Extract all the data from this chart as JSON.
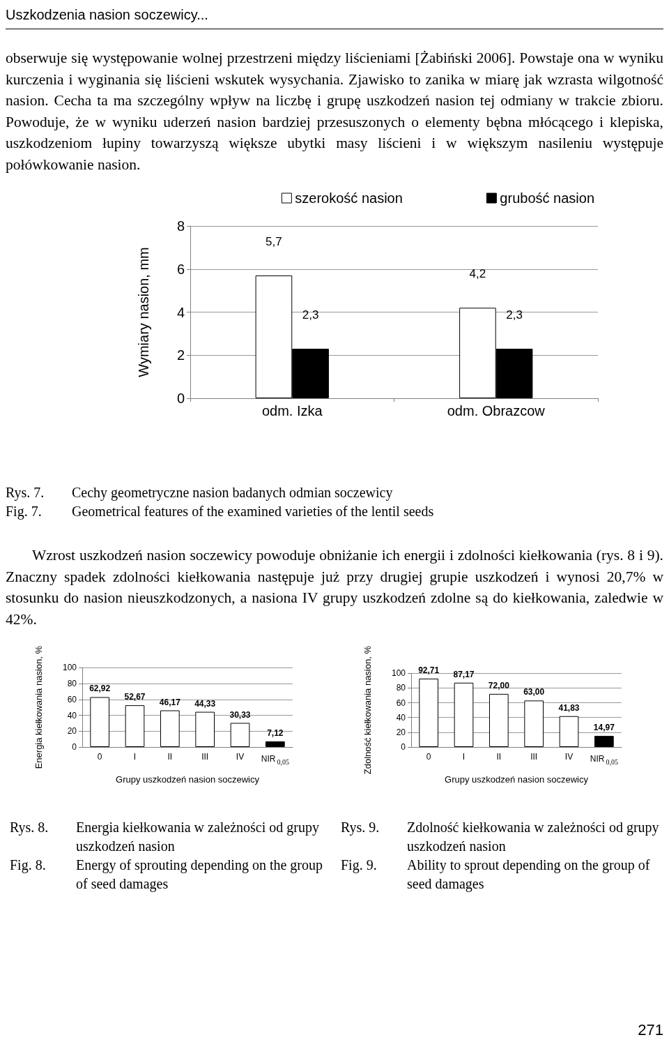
{
  "chart_data": [
    {
      "type": "bar",
      "ylabel": "Wymiary nasion, mm",
      "categories": [
        "odm. Izka",
        "odm. Obrazcow"
      ],
      "series": [
        {
          "name": "szerokość nasion",
          "color": "#ffffff",
          "values": [
            5.7,
            4.2
          ],
          "value_labels": [
            "5,7",
            "4,2"
          ]
        },
        {
          "name": "grubość nasion",
          "color": "#000000",
          "values": [
            2.3,
            2.3
          ],
          "value_labels": [
            "2,3",
            "2,3"
          ]
        }
      ],
      "ylim": [
        0,
        8
      ],
      "yticks": [
        0,
        2,
        4,
        6,
        8
      ],
      "grid": "y",
      "legend": "top right",
      "annotations": [
        "Uszkodzenia nasion soczewicy...",
        "obserwuje się występowanie wolnej przestrzeni między liścieniami [Żabiński 2006]. Powstaje ona w wyniku kurczenia i wyginania się liścieni wskutek wysychania. Zjawisko to zanika w miarę jak wzrasta wilgotność nasion. Cecha ta ma szczególny wpływ na liczbę i grupę uszkodzeń nasion tej odmiany w trakcie zbioru. Powoduje, że w wyniku uderzeń nasion bardziej przesuszonych o elementy bębna młócącego i klepiska, uszkodzeniom łupiny towarzyszą większe ubytki masy liścieni i w większym nasileniu występuje połówkowanie nasion.",
        "Rys. 7.",
        "Cechy geometryczne nasion badanych odmian soczewicy",
        "Fig. 7.",
        "Geometrical features of the examined varieties of the lentil seeds"
      ]
    },
    {
      "type": "bar",
      "ylabel": "Energia kiełkowania nasion, %",
      "xlabel": "Grupy uszkodzeń nasion soczewicy",
      "categories": [
        "0",
        "I",
        "II",
        "III",
        "IV",
        "NIR$_{0,05}$"
      ],
      "values": [
        62.92,
        52.67,
        46.17,
        44.33,
        30.33,
        7.12
      ],
      "value_labels": [
        "62,92",
        "52,67",
        "46,17",
        "44,33",
        "30,33",
        "7,12"
      ],
      "colors": [
        "#ffffff",
        "#ffffff",
        "#ffffff",
        "#ffffff",
        "#ffffff",
        "#000000"
      ],
      "ylim": [
        0,
        100
      ],
      "yticks": [
        0,
        20,
        40,
        60,
        80,
        100
      ],
      "grid": "y",
      "annotations": [
        "Wzrost uszkodzeń nasion soczewicy powoduje obniżanie ich energii i zdolności kiełkowania (rys. 8 i 9). Znaczny spadek zdolności kiełkowania następuje już przy drugiej grupie uszkodzeń i wynosi 20,7% w stosunku do nasion nieuszkodzonych, a nasiona IV grupy uszkodzeń zdolne są do kiełkowania, zaledwie w 42%.",
        "Rys. 8.",
        "Energia kiełkowania w zależności od grupy uszkodzeń nasion",
        "Fig. 8.",
        "Energy of sprouting depending on the group of seed damages"
      ]
    },
    {
      "type": "bar",
      "ylabel": "Zdolność kiełkowania nasion, %",
      "xlabel": "Grupy uszkodzeń nasion soczewicy",
      "categories": [
        "0",
        "I",
        "II",
        "III",
        "IV",
        "NIR$_{0,05}$"
      ],
      "values": [
        92.71,
        87.17,
        72.0,
        63.0,
        41.83,
        14.97
      ],
      "value_labels": [
        "92,71",
        "87,17",
        "72,00",
        "63,00",
        "41,83",
        "14,97"
      ],
      "colors": [
        "#ffffff",
        "#ffffff",
        "#ffffff",
        "#ffffff",
        "#ffffff",
        "#000000"
      ],
      "ylim": [
        0,
        100
      ],
      "yticks": [
        0,
        20,
        40,
        60,
        80,
        100
      ],
      "grid": "y",
      "annotations": [
        "Rys. 9.",
        "Zdolność kiełkowania w zależności od grupy uszkodzeń nasion",
        "Fig. 9.",
        "Ability to sprout depending on the group of seed damages",
        "271"
      ]
    }
  ]
}
